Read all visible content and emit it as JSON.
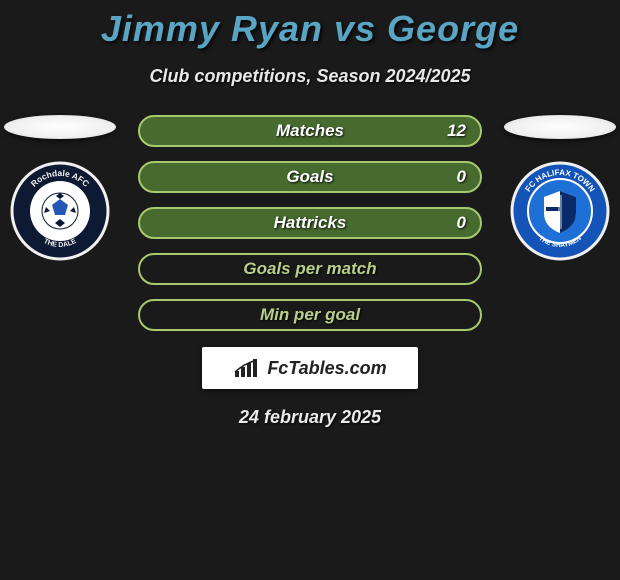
{
  "header": {
    "title": "Jimmy Ryan vs George",
    "title_color": "#5aa5c4",
    "subtitle": "Club competitions, Season 2024/2025"
  },
  "players": {
    "left": {
      "club_name": "Rochdale AFC",
      "club_sub": "THE DALE",
      "crest_outer": "#0e1a33",
      "crest_stroke": "#f0f0f0",
      "crest_inner": "#ffffff",
      "crest_accent": "#2257b5"
    },
    "right": {
      "club_name": "FC HALIFAX TOWN",
      "club_sub": "THE SHAYMEN",
      "crest_outer": "#1453b8",
      "crest_stroke": "#f0f0f0",
      "crest_inner": "#1e6fd6",
      "crest_accent": "#0a2b6a"
    }
  },
  "stats": [
    {
      "label": "Matches",
      "value_right": "12",
      "fill_color": "#476b2f",
      "border_color": "#a7c96f"
    },
    {
      "label": "Goals",
      "value_right": "0",
      "fill_color": "#476b2f",
      "border_color": "#a7c96f"
    },
    {
      "label": "Hattricks",
      "value_right": "0",
      "fill_color": "#476b2f",
      "border_color": "#a7c96f"
    },
    {
      "label": "Goals per match",
      "value_right": "",
      "fill_color": "#1a1a1a",
      "border_color": "#a7c96f"
    },
    {
      "label": "Min per goal",
      "value_right": "",
      "fill_color": "#1a1a1a",
      "border_color": "#a7c96f"
    }
  ],
  "footer": {
    "brand": "FcTables.com",
    "date": "24 february 2025"
  },
  "styling": {
    "background": "#1a1a1a",
    "text_color": "#eaeaea",
    "pill_text_color": "#b9d08a",
    "pill_text_filled": "#ffffff"
  }
}
